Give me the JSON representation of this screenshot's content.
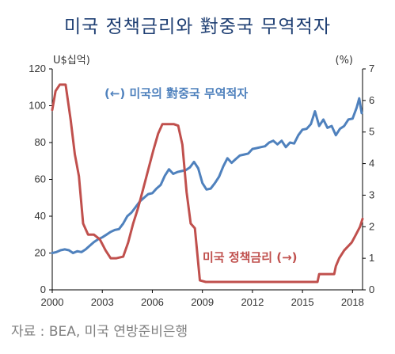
{
  "title": "미국 정책금리와 對중국 무역적자",
  "source": "자료 : BEA, 미국 연방준비은행",
  "chart_data": {
    "type": "line",
    "left_unit": "U$십억)",
    "right_unit": "(%)",
    "x_range": [
      2000,
      2018.6
    ],
    "x_ticks": [
      "2000",
      "2003",
      "2006",
      "2009",
      "2012",
      "2015",
      "2018"
    ],
    "y_left_range": [
      0,
      120
    ],
    "y_left_ticks": [
      "0",
      "20",
      "40",
      "60",
      "80",
      "100",
      "120"
    ],
    "y_right_range": [
      0,
      7
    ],
    "y_right_ticks": [
      "0",
      "1",
      "2",
      "3",
      "4",
      "5",
      "6",
      "7"
    ],
    "grid": false,
    "series": [
      {
        "name": "(←) 미국의 對중국 무역적자",
        "axis": "left",
        "color": "#4f81bd",
        "points": [
          [
            2000.0,
            20
          ],
          [
            2000.25,
            20.5
          ],
          [
            2000.5,
            21.5
          ],
          [
            2000.75,
            22
          ],
          [
            2001.0,
            21.5
          ],
          [
            2001.25,
            20
          ],
          [
            2001.5,
            21
          ],
          [
            2001.75,
            20.5
          ],
          [
            2002.0,
            22
          ],
          [
            2002.25,
            24
          ],
          [
            2002.5,
            26
          ],
          [
            2002.75,
            27.5
          ],
          [
            2003.0,
            28.5
          ],
          [
            2003.25,
            30
          ],
          [
            2003.5,
            31.5
          ],
          [
            2003.75,
            32.5
          ],
          [
            2004.0,
            33
          ],
          [
            2004.25,
            36
          ],
          [
            2004.5,
            40
          ],
          [
            2004.75,
            42
          ],
          [
            2005.0,
            45
          ],
          [
            2005.25,
            48
          ],
          [
            2005.5,
            50
          ],
          [
            2005.75,
            52
          ],
          [
            2006.0,
            52.5
          ],
          [
            2006.25,
            55
          ],
          [
            2006.5,
            57
          ],
          [
            2006.75,
            62
          ],
          [
            2007.0,
            65.5
          ],
          [
            2007.25,
            63
          ],
          [
            2007.5,
            64
          ],
          [
            2007.75,
            64.5
          ],
          [
            2008.0,
            65
          ],
          [
            2008.25,
            66.5
          ],
          [
            2008.5,
            69.5
          ],
          [
            2008.75,
            66
          ],
          [
            2009.0,
            58
          ],
          [
            2009.25,
            54.5
          ],
          [
            2009.5,
            55
          ],
          [
            2009.75,
            58
          ],
          [
            2010.0,
            61.5
          ],
          [
            2010.25,
            67
          ],
          [
            2010.5,
            71.5
          ],
          [
            2010.75,
            69
          ],
          [
            2011.0,
            71
          ],
          [
            2011.25,
            73
          ],
          [
            2011.5,
            73.5
          ],
          [
            2011.75,
            74
          ],
          [
            2012.0,
            76.5
          ],
          [
            2012.25,
            77
          ],
          [
            2012.5,
            77.5
          ],
          [
            2012.75,
            78
          ],
          [
            2013.0,
            80
          ],
          [
            2013.25,
            81
          ],
          [
            2013.5,
            79
          ],
          [
            2013.75,
            81
          ],
          [
            2014.0,
            77.5
          ],
          [
            2014.25,
            80
          ],
          [
            2014.5,
            79.5
          ],
          [
            2014.75,
            84
          ],
          [
            2015.0,
            87
          ],
          [
            2015.25,
            87.5
          ],
          [
            2015.5,
            90
          ],
          [
            2015.75,
            97
          ],
          [
            2016.0,
            89
          ],
          [
            2016.25,
            92.5
          ],
          [
            2016.5,
            88
          ],
          [
            2016.75,
            89
          ],
          [
            2017.0,
            84
          ],
          [
            2017.25,
            87.5
          ],
          [
            2017.5,
            89
          ],
          [
            2017.75,
            92.5
          ],
          [
            2018.0,
            93
          ],
          [
            2018.25,
            99
          ],
          [
            2018.4,
            104
          ],
          [
            2018.55,
            96
          ]
        ]
      },
      {
        "name": "미국 정책금리 (→)",
        "axis": "right",
        "color": "#c0504d",
        "points": [
          [
            2000.0,
            5.7
          ],
          [
            2000.2,
            6.3
          ],
          [
            2000.45,
            6.5
          ],
          [
            2000.8,
            6.5
          ],
          [
            2001.1,
            5.4
          ],
          [
            2001.35,
            4.3
          ],
          [
            2001.6,
            3.6
          ],
          [
            2001.85,
            2.1
          ],
          [
            2002.15,
            1.75
          ],
          [
            2002.5,
            1.75
          ],
          [
            2002.85,
            1.6
          ],
          [
            2003.2,
            1.25
          ],
          [
            2003.5,
            1.0
          ],
          [
            2003.85,
            1.0
          ],
          [
            2004.25,
            1.05
          ],
          [
            2004.55,
            1.5
          ],
          [
            2004.85,
            2.1
          ],
          [
            2005.15,
            2.6
          ],
          [
            2005.45,
            3.2
          ],
          [
            2005.75,
            3.8
          ],
          [
            2006.05,
            4.4
          ],
          [
            2006.35,
            4.95
          ],
          [
            2006.6,
            5.25
          ],
          [
            2006.9,
            5.25
          ],
          [
            2007.3,
            5.25
          ],
          [
            2007.55,
            5.2
          ],
          [
            2007.8,
            4.6
          ],
          [
            2008.05,
            3.1
          ],
          [
            2008.3,
            2.1
          ],
          [
            2008.55,
            1.95
          ],
          [
            2008.85,
            0.3
          ],
          [
            2009.2,
            0.25
          ],
          [
            2010.0,
            0.25
          ],
          [
            2011.0,
            0.25
          ],
          [
            2012.0,
            0.25
          ],
          [
            2013.0,
            0.25
          ],
          [
            2014.0,
            0.25
          ],
          [
            2015.0,
            0.25
          ],
          [
            2015.9,
            0.25
          ],
          [
            2016.0,
            0.5
          ],
          [
            2016.9,
            0.5
          ],
          [
            2017.0,
            0.75
          ],
          [
            2017.2,
            1.0
          ],
          [
            2017.5,
            1.25
          ],
          [
            2017.95,
            1.5
          ],
          [
            2018.2,
            1.75
          ],
          [
            2018.45,
            2.0
          ],
          [
            2018.6,
            2.25
          ]
        ]
      }
    ]
  }
}
